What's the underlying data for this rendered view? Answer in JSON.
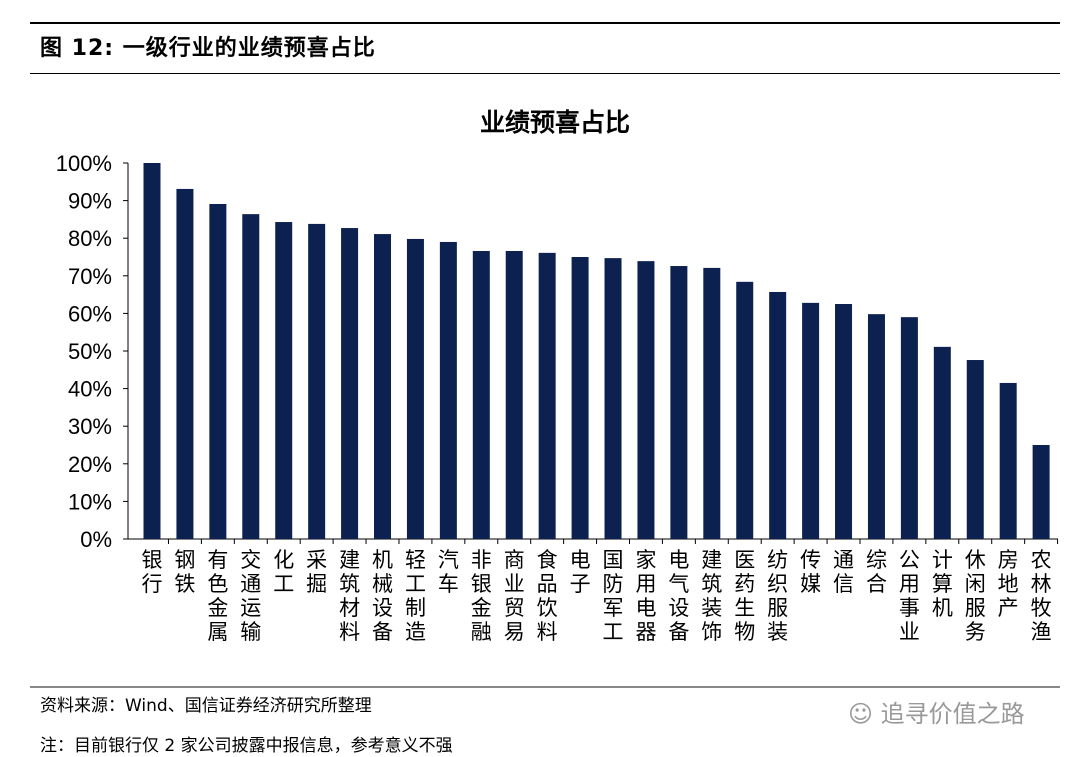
{
  "figure_title": "图 12: 一级行业的业绩预喜占比",
  "source": "资料来源：Wind、国信证券经济研究所整理",
  "note": "注：目前银行仅 2 家公司披露中报信息，参考意义不强",
  "watermark": "追寻价值之路",
  "chart_data": {
    "type": "bar",
    "title": "业绩预喜占比",
    "xlabel": "",
    "ylabel": "",
    "ylim": [
      0,
      100
    ],
    "yticks": [
      "0%",
      "10%",
      "20%",
      "30%",
      "40%",
      "50%",
      "60%",
      "70%",
      "80%",
      "90%",
      "100%"
    ],
    "grid": false,
    "bar_color": "#0d2150",
    "categories": [
      "银行",
      "钢铁",
      "有色金属",
      "交通运输",
      "化工",
      "采掘",
      "建筑材料",
      "机械设备",
      "轻工制造",
      "汽车",
      "非银金融",
      "商业贸易",
      "食品饮料",
      "电子",
      "国防军工",
      "家用电器",
      "电气设备",
      "建筑装饰",
      "医药生物",
      "纺织服装",
      "传媒",
      "通信",
      "综合",
      "公用事业",
      "计算机",
      "休闲服务",
      "房地产",
      "农林牧渔"
    ],
    "values": [
      100,
      93.1,
      89.1,
      86.4,
      84.3,
      83.8,
      82.7,
      81.1,
      79.8,
      79.0,
      76.6,
      76.6,
      76.1,
      75.0,
      74.7,
      73.9,
      72.6,
      72.1,
      68.4,
      65.7,
      62.8,
      62.5,
      59.8,
      59.0,
      51.1,
      47.6,
      41.5,
      25.0
    ]
  }
}
